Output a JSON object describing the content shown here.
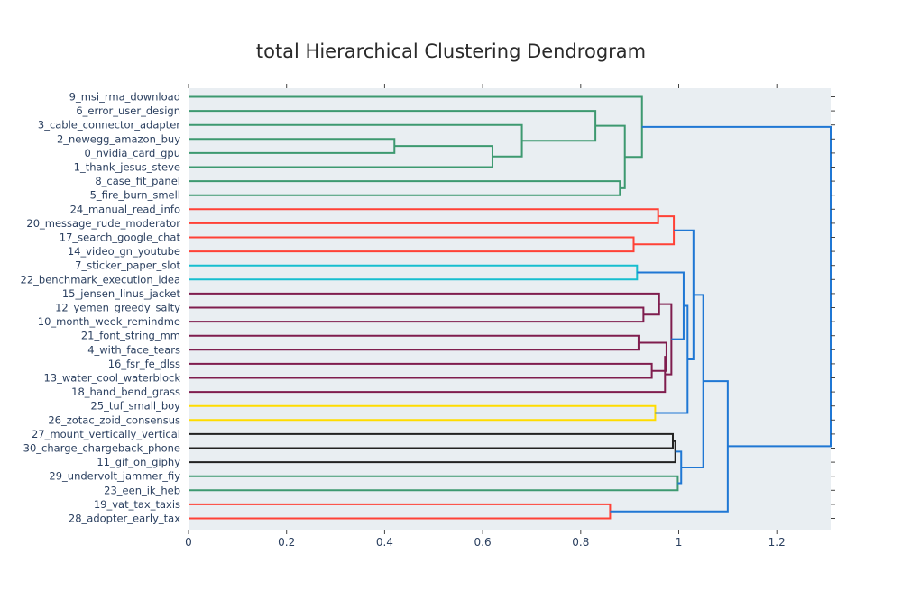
{
  "chart_data": {
    "type": "dendrogram",
    "title": "total Hierarchical Clustering Dendrogram",
    "orientation": "right-to-left (root at right)",
    "xlim": [
      0,
      1.31
    ],
    "x_ticks": [
      0,
      0.2,
      0.4,
      0.6,
      0.8,
      1,
      1.2
    ],
    "x_tick_labels": [
      "0",
      "0.2",
      "0.4",
      "0.6",
      "0.8",
      "1",
      "1.2"
    ],
    "plot_background": "#e9eef2",
    "leaves": [
      "9_msi_rma_download",
      "6_error_user_design",
      "3_cable_connector_adapter",
      "2_newegg_amazon_buy",
      "0_nvidia_card_gpu",
      "1_thank_jesus_steve",
      "8_case_fit_panel",
      "5_fire_burn_smell",
      "24_manual_read_info",
      "20_message_rude_moderator",
      "17_search_google_chat",
      "14_video_gn_youtube",
      "7_sticker_paper_slot",
      "22_benchmark_execution_idea",
      "15_jensen_linus_jacket",
      "12_yemen_greedy_salty",
      "10_month_week_remindme",
      "21_font_string_mm",
      "4_with_face_tears",
      "16_fsr_fe_dlss",
      "13_water_cool_waterblock",
      "18_hand_bend_grass",
      "25_tuf_small_boy",
      "26_zotac_zoid_consensus",
      "27_mount_vertically_vertical",
      "30_charge_chargeback_phone",
      "11_gif_on_giphy",
      "29_undervolt_jammer_fiy",
      "23_een_ik_heb",
      "19_vat_tax_taxis",
      "28_adopter_early_tax"
    ],
    "merges": [
      {
        "id": "a",
        "children": [
          "L4",
          "L5"
        ],
        "height": 0.42,
        "color": "green"
      },
      {
        "id": "b",
        "children": [
          "a",
          "L6"
        ],
        "height": 0.62,
        "color": "green"
      },
      {
        "id": "c",
        "children": [
          "L3",
          "b"
        ],
        "height": 0.68,
        "color": "green"
      },
      {
        "id": "d",
        "children": [
          "L2",
          "c"
        ],
        "height": 0.83,
        "color": "green"
      },
      {
        "id": "e",
        "children": [
          "L7",
          "L8"
        ],
        "height": 0.88,
        "color": "green"
      },
      {
        "id": "f",
        "children": [
          "d",
          "e"
        ],
        "height": 0.89,
        "color": "green"
      },
      {
        "id": "g",
        "children": [
          "L1",
          "f"
        ],
        "height": 0.925,
        "color": "green"
      },
      {
        "id": "h",
        "children": [
          "L9",
          "L10"
        ],
        "height": 0.958,
        "color": "red"
      },
      {
        "id": "i",
        "children": [
          "L11",
          "L12"
        ],
        "height": 0.908,
        "color": "red"
      },
      {
        "id": "j",
        "children": [
          "h",
          "i"
        ],
        "height": 0.99,
        "color": "red"
      },
      {
        "id": "k",
        "children": [
          "L13",
          "L14"
        ],
        "height": 0.915,
        "color": "cyan"
      },
      {
        "id": "l",
        "children": [
          "L16",
          "L17"
        ],
        "height": 0.928,
        "color": "purple"
      },
      {
        "id": "m",
        "children": [
          "L15",
          "l"
        ],
        "height": 0.96,
        "color": "purple"
      },
      {
        "id": "n",
        "children": [
          "L18",
          "L19"
        ],
        "height": 0.918,
        "color": "purple"
      },
      {
        "id": "o",
        "children": [
          "L20",
          "L21"
        ],
        "height": 0.945,
        "color": "purple"
      },
      {
        "id": "p",
        "children": [
          "n",
          "o"
        ],
        "height": 0.975,
        "color": "purple"
      },
      {
        "id": "q",
        "children": [
          "p",
          "L22"
        ],
        "height": 0.972,
        "color": "purple"
      },
      {
        "id": "r",
        "children": [
          "m",
          "q"
        ],
        "height": 0.985,
        "color": "purple"
      },
      {
        "id": "s",
        "children": [
          "k",
          "r"
        ],
        "height": 1.01,
        "color": "blue"
      },
      {
        "id": "t",
        "children": [
          "L23",
          "L24"
        ],
        "height": 0.952,
        "color": "yellow"
      },
      {
        "id": "u",
        "children": [
          "s",
          "t"
        ],
        "height": 1.018,
        "color": "blue"
      },
      {
        "id": "v",
        "children": [
          "j",
          "u"
        ],
        "height": 1.03,
        "color": "blue"
      },
      {
        "id": "w",
        "children": [
          "L25",
          "L26"
        ],
        "height": 0.988,
        "color": "black"
      },
      {
        "id": "x",
        "children": [
          "w",
          "L27"
        ],
        "height": 0.993,
        "color": "black"
      },
      {
        "id": "y",
        "children": [
          "L28",
          "L29"
        ],
        "height": 0.998,
        "color": "green"
      },
      {
        "id": "z",
        "children": [
          "x",
          "y"
        ],
        "height": 1.005,
        "color": "blue"
      },
      {
        "id": "aa",
        "children": [
          "v",
          "z"
        ],
        "height": 1.05,
        "color": "blue"
      },
      {
        "id": "bb",
        "children": [
          "L30",
          "L31"
        ],
        "height": 0.86,
        "color": "red"
      },
      {
        "id": "cc",
        "children": [
          "aa",
          "bb"
        ],
        "height": 1.1,
        "color": "blue"
      },
      {
        "id": "dd",
        "children": [
          "g",
          "cc"
        ],
        "height": 1.31,
        "color": "blue"
      }
    ],
    "colors": {
      "green": "#3d9970",
      "red": "#ff4136",
      "cyan": "#17becf",
      "purple": "#7f1d4e",
      "yellow": "#ffdc00",
      "black": "#222222",
      "blue": "#1f77d4"
    },
    "grid": false,
    "legend": "none"
  }
}
